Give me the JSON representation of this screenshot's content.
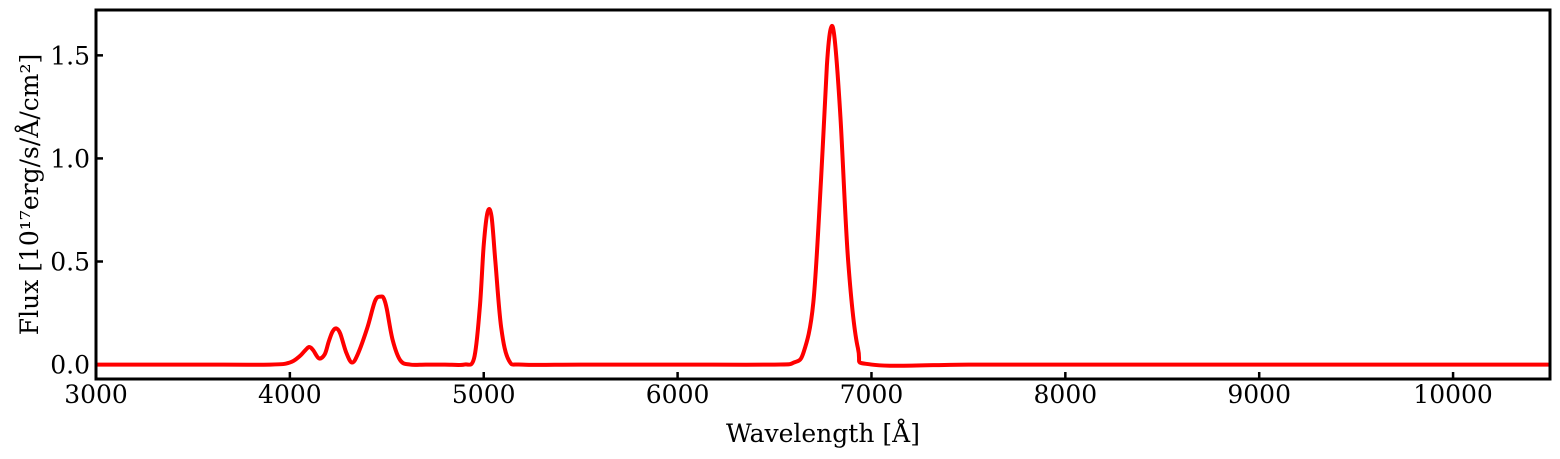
{
  "chart_data": {
    "type": "line",
    "title": "",
    "xlabel": "Wavelength [Å]",
    "ylabel": "Flux [10¹⁷erg/s/Å/cm²]",
    "xlim": [
      3000,
      10500
    ],
    "ylim": [
      -0.07,
      1.72
    ],
    "xticks": [
      3000,
      4000,
      5000,
      6000,
      7000,
      8000,
      9000,
      10000
    ],
    "xtick_labels": [
      "3000",
      "4000",
      "5000",
      "6000",
      "7000",
      "8000",
      "9000",
      "10000"
    ],
    "yticks": [
      0.0,
      0.5,
      1.0,
      1.5
    ],
    "ytick_labels": [
      "0.0",
      "0.5",
      "1.0",
      "1.5"
    ],
    "grid": false,
    "series": [
      {
        "color": "#ff0000",
        "x": [
          3000,
          3500,
          3900,
          4000,
          4050,
          4080,
          4100,
          4120,
          4150,
          4180,
          4200,
          4220,
          4240,
          4260,
          4290,
          4320,
          4350,
          4400,
          4440,
          4470,
          4485,
          4500,
          4530,
          4570,
          4620,
          4700,
          4800,
          4900,
          4950,
          4980,
          5000,
          5020,
          5040,
          5060,
          5090,
          5130,
          5200,
          5500,
          6000,
          6500,
          6600,
          6650,
          6700,
          6740,
          6770,
          6790,
          6810,
          6840,
          6880,
          6930,
          7000,
          7500,
          8000,
          9000,
          10000,
          10500
        ],
        "y": [
          0.0,
          0.0,
          0.0,
          0.01,
          0.04,
          0.07,
          0.085,
          0.07,
          0.03,
          0.05,
          0.11,
          0.16,
          0.175,
          0.15,
          0.06,
          0.01,
          0.05,
          0.18,
          0.31,
          0.33,
          0.32,
          0.27,
          0.12,
          0.02,
          0.0,
          0.0,
          0.0,
          0.0,
          0.03,
          0.28,
          0.58,
          0.74,
          0.72,
          0.5,
          0.18,
          0.02,
          0.0,
          0.0,
          0.0,
          0.0,
          0.01,
          0.06,
          0.3,
          0.9,
          1.45,
          1.63,
          1.58,
          1.2,
          0.5,
          0.08,
          0.0,
          0.0,
          0.0,
          0.0,
          0.0,
          0.0
        ]
      }
    ]
  }
}
